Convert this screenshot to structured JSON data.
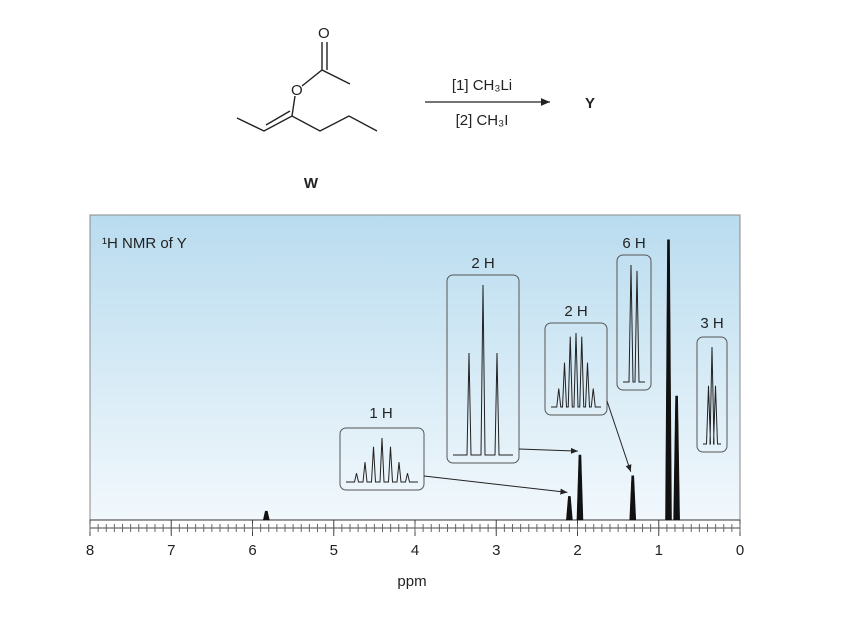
{
  "reaction": {
    "atoms": [
      "O",
      "O"
    ],
    "start_label": "W",
    "reagent_1": "[1] CH₃Li",
    "reagent_2": "[2] CH₃I",
    "product_label": "Y"
  },
  "chart_data": {
    "type": "spectrum",
    "title": "¹H NMR of Y",
    "x_label": "ppm",
    "xlim": [
      8,
      0
    ],
    "xticks": [
      8,
      7,
      6,
      5,
      4,
      3,
      2,
      1,
      0
    ],
    "ylim": [
      0,
      100
    ],
    "color": "#111111",
    "peaks": [
      {
        "shift": 5.83,
        "intensity": 3
      },
      {
        "shift": 2.1,
        "intensity": 8,
        "label": "1 H"
      },
      {
        "shift": 1.97,
        "intensity": 22,
        "label": "2 H"
      },
      {
        "shift": 1.32,
        "intensity": 15,
        "label": "2 H"
      },
      {
        "shift": 0.88,
        "intensity": 95,
        "label": "6 H"
      },
      {
        "shift": 0.78,
        "intensity": 42,
        "label": "3 H"
      }
    ]
  }
}
